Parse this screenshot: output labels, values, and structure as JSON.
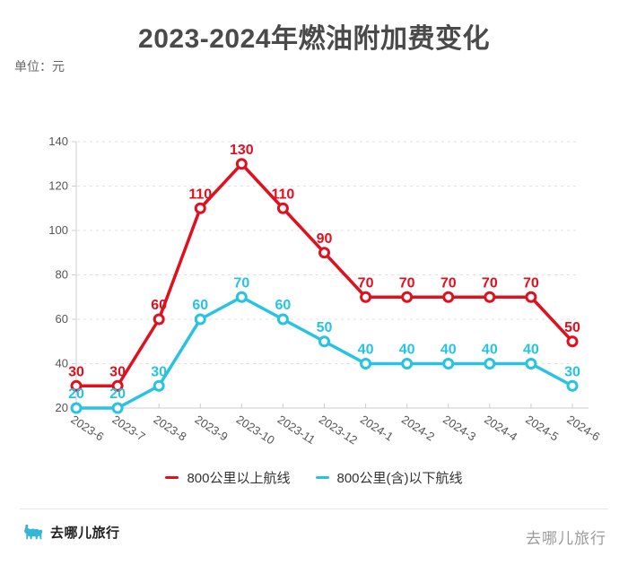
{
  "title": "2023-2024年燃油附加费变化",
  "unit_label": "单位：元",
  "chart_data": {
    "type": "line",
    "categories": [
      "2023-6",
      "2023-7",
      "2023-8",
      "2023-9",
      "2023-10",
      "2023-11",
      "2023-12",
      "2024-1",
      "2024-2",
      "2024-3",
      "2024-4",
      "2024-5",
      "2024-6"
    ],
    "series": [
      {
        "name": "800公里以上航线",
        "color": "#e0101e",
        "values": [
          30,
          30,
          60,
          110,
          130,
          110,
          90,
          70,
          70,
          70,
          70,
          70,
          50
        ]
      },
      {
        "name": "800公里(含)以下航线",
        "color": "#26c3e3",
        "values": [
          20,
          20,
          30,
          60,
          70,
          60,
          50,
          40,
          40,
          40,
          40,
          40,
          30
        ]
      }
    ],
    "ylim": [
      20,
      140
    ],
    "y_ticks": [
      20,
      40,
      60,
      80,
      100,
      120,
      140
    ],
    "grid": "dashed horizontal gridlines",
    "legend_position": "bottom",
    "marker": "open circle",
    "data_labels": "above points, colored as series",
    "x_label_rotation_deg": 33
  },
  "style_colors": {
    "axis": "#cccccc",
    "gridline": "#e2e2e2",
    "tick_text": "#555555",
    "title_text": "#4a4a4a",
    "logo_cyan": "#35b6d8"
  },
  "footer": {
    "brand_left": "去哪儿旅行",
    "brand_right": "去哪儿旅行",
    "logo_icon": "camel-icon"
  }
}
